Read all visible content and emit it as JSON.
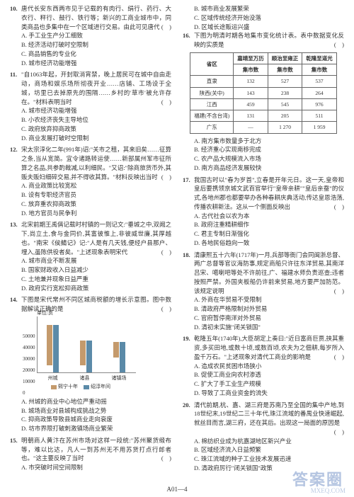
{
  "left": {
    "q10": {
      "num": "10.",
      "stem": "唐代长安东西两市见于记载的有肉行、绢行、药行、大衣行、秤行、鼓行、铁行等；新兴的工商业城市中，同类商品也多集中在一个区域进行交易。由此可见唐代",
      "opts": [
        "A. 手工业生产分工细致",
        "B. 经济活动打破时空限制",
        "C. 商品销售的专业化",
        "D. 城市经济功能增强"
      ]
    },
    "q11": {
      "num": "11.",
      "stem": "\"自1063年起，开封取消宵禁，晚上居民可在城中自由走动，商场和娱乐场所彻夜开业……店铺、工场设于全城，坊里已去掉原先的围隔……乡村的'草市'被允许存在。\"材料表明当时",
      "opts": [
        "A. 城市经济功能增强",
        "B. 小农经济丧失主导地位",
        "C. 政府放弃抑商政策",
        "D. 商业发展打破时空限制"
      ]
    },
    "q12": {
      "num": "12.",
      "stem": "宋太宗淳化二年(991年)诏:\"关市之租，其来旧矣……征算之条,当从宽简。宜令诸路转运使……新部属州军市征所算之名品,共参酌裁减,以利细民。\"又诏:\"除商旅货币外,其贩夫贩妇细碎交易,并不得收其算。\"材料反映出当时",
      "opts": [
        "A. 商业政策比较宽松",
        "B. 设有专职经济官员",
        "C. 放弃重农抑商政策",
        "D. 地方官员与民争利"
      ]
    },
    "q13": {
      "num": "13.",
      "stem": "北宋前期王禹偁记载时村镇的一则记文:\"垂城之中,双阙之下,尚立土,食与金同价,其富彼惟上,非彼威世廉,其厚越也。\"南宋《侯鲭记》记:\"人是有几天钱,便经户县那户、埋入,虽陈供役者矣。\"上述现象表明宋代",
      "opts": [
        "A. 城市商业不断发展",
        "B. 国家财政收入日益减少",
        "C. 土地兼并现象日益严重",
        "D. 政府实行宽松抑商政策"
      ]
    },
    "q14": {
      "num": "14.",
      "stem": "下图是宋代常州不同区城商税额的增长示意图。图中数据解读正确的是",
      "opts": [
        "A. 州城的商业中心地位严重动摇",
        "B. 城场商业对县城构成挑战之势",
        "C. 抑商政策导致县城商业走向衰废",
        "D. 坊市界限打破刺激镇场商业繁荣"
      ]
    },
    "chart": {
      "type": "bar",
      "unit": "单位:贯",
      "y_ticks": [
        "0",
        "10000",
        "20000",
        "30000",
        "40000",
        "50000"
      ],
      "y_max": 50000,
      "categories": [
        "州城",
        "诸县",
        "诸镇场"
      ],
      "series": [
        {
          "name": "熙宁十年",
          "color": "#c49a6c",
          "values": [
            36000,
            22000,
            14000
          ]
        },
        {
          "name": "绍淳年间",
          "color": "#5b8aa8",
          "values": [
            42000,
            28000,
            27000
          ]
        }
      ]
    },
    "q15": {
      "num": "15.",
      "stem": "明朝商人黄汴在苏州市场对这样一段统:\"苏州聚货缎布等，难以比达，凡人一到苏州无不用苏货打点行郎者也。\"这主要反映了当时",
      "opts": [
        "A. 市突破时间空间限制"
      ]
    }
  },
  "right": {
    "q15_cont": [
      "B. 城市商业发展繁荣",
      "C. 区域传统经济开始没落",
      "D. 区域长途贩运兴盛"
    ],
    "q16": {
      "num": "16.",
      "stem": "下图为明清时期各地集市变化统计表。表中数据变化反映的实质是"
    },
    "table": {
      "headers_row1": [
        "省区",
        "嘉靖至万历",
        "顺治至雍正",
        "乾隆至道光"
      ],
      "headers_row2": [
        "",
        "集市数",
        "集市数",
        "集市数"
      ],
      "rows": [
        [
          "直隶",
          "132",
          "527",
          "537"
        ],
        [
          "陕西(关中)",
          "143",
          "238",
          "264"
        ],
        [
          "江西",
          "459",
          "545",
          "976"
        ],
        [
          "福建(不含台湾)",
          "131",
          "205",
          "511"
        ],
        [
          "广东",
          "—",
          "1 270",
          "1 959"
        ]
      ]
    },
    "q16_opts": [
      "A. 南方集市数量多于北方",
      "B. 经济重心实现南移完成",
      "C. 农产品大规模流入市场",
      "D. 南方商品经济发展较快"
    ],
    "q17": {
      "num": "17.",
      "stem": "我国古时以\"春为岁首\",立春是开年元日。这一天,皇帝和皇后要携领京城文武百官举行\"皇帝亲耕\"\"皇后亲蚕\"的仪式,各地州郡也都要举办各种春耕庆典活动,传达皇恩浩荡,传播农耕新法。这从一个侧面反映出",
      "opts": [
        "A. 古代社会以农为本",
        "B. 政府注重精耕细作",
        "C. 君主专制日渐强化",
        "D. 各地民俗趋向一致"
      ]
    },
    "q18": {
      "num": "18.",
      "stem": "清康熙五十六年(1717年)一月,兵部等衙门会同闽浙总督、两广总督等官议海防事,规定商船只许往东洋贸易,其南洋吕宋、噶喇吧等处不许前往,广、福建水师负责巡查;违者按照严禁。外国夹板船仍许前来贸易,地方要严加防范。该规定说明",
      "opts": [
        "A. 外商在华贸易不受限制",
        "B. 清政府严格限制对外贸易",
        "C. 官府暂停南洋对外贸易",
        "D. 清初未实施\"闭关锁国\""
      ]
    },
    "q19": {
      "num": "19.",
      "stem": "乾隆五年(1740年),大臣胡定上奏曰:\"近日富商巨贾,挟其重资,多买田地,或数十顷,或数百顷,农夫为之佃耕,每岁所入盈千万石。\"上述现象对清代工商业的影响是",
      "opts": [
        "A. 造成农民贫困市场狭小",
        "B. 促使工商业向农村渗透",
        "C. 扩大了手工业生产规模",
        "D. 导致了工商业资金的流失"
      ]
    },
    "q20": {
      "num": "20.",
      "stem": "清代前期,杭、嘉、湖三府是苏南乃至全国的集中产地,到18世纪末,19世纪二三十年代,珠江流域的番禺业快速崛起,就丝目而言,湖三府，还在其后。出现这一局面的原因是",
      "opts": [
        "A. 棉纺织业成为杭嘉湖地区新兴产业",
        "B. 区域经济流入日益频繁",
        "C. 珠江流域的种子工业技术发展迅速",
        "D. 清政府厉行\"闭关锁国\"政策"
      ]
    }
  },
  "footer": "A01—4",
  "watermark": "答案圈",
  "watermark_sub": "MXEQ.COM"
}
